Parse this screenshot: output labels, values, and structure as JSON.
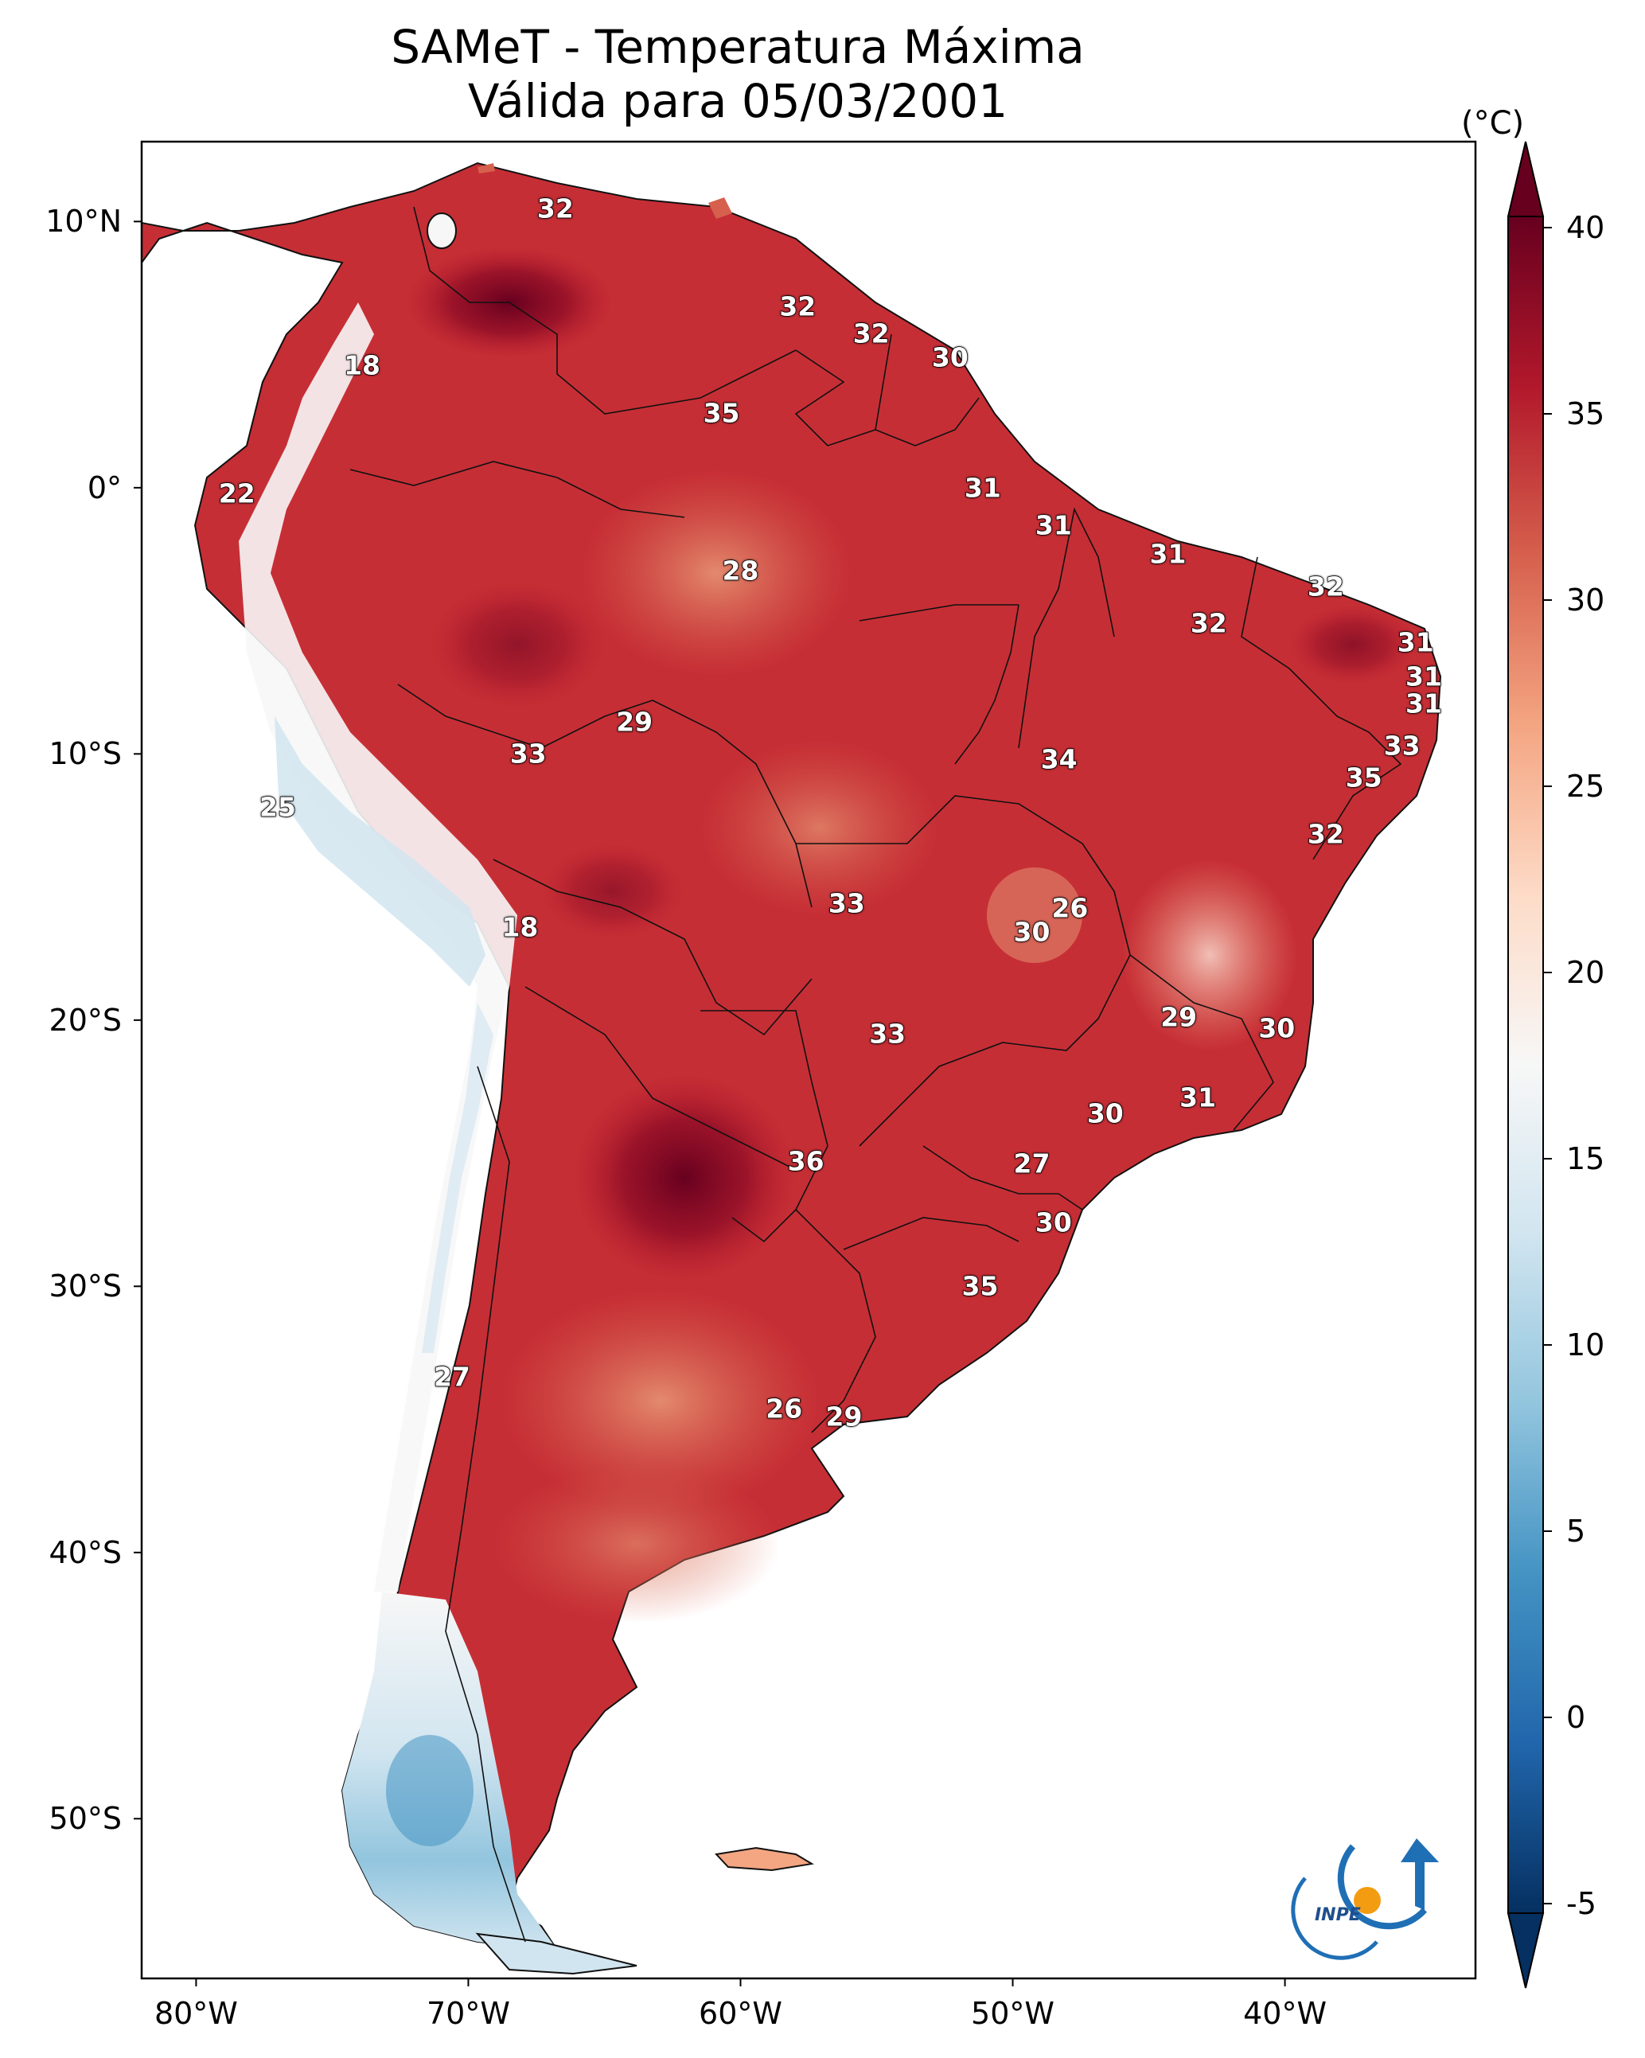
{
  "title": {
    "line1": "SAMeT - Temperatura Máxima",
    "line2": "Válida para 05/03/2001"
  },
  "map": {
    "lon_range": [
      -82,
      -33
    ],
    "lat_range": [
      -56,
      13
    ],
    "lat_ticks": [
      {
        "value": 10,
        "label": "10°N"
      },
      {
        "value": 0,
        "label": "0°"
      },
      {
        "value": -10,
        "label": "10°S"
      },
      {
        "value": -20,
        "label": "20°S"
      },
      {
        "value": -30,
        "label": "30°S"
      },
      {
        "value": -40,
        "label": "40°S"
      },
      {
        "value": -50,
        "label": "50°S"
      }
    ],
    "lon_ticks": [
      {
        "value": -80,
        "label": "80°W"
      },
      {
        "value": -70,
        "label": "70°W"
      },
      {
        "value": -60,
        "label": "60°W"
      },
      {
        "value": -50,
        "label": "50°W"
      },
      {
        "value": -40,
        "label": "40°W"
      }
    ]
  },
  "colorbar": {
    "unit": "(°C)",
    "min": -5,
    "max": 40,
    "ticks": [
      {
        "value": 40,
        "label": "40"
      },
      {
        "value": 35,
        "label": "35"
      },
      {
        "value": 30,
        "label": "30"
      },
      {
        "value": 25,
        "label": "25"
      },
      {
        "value": 20,
        "label": "20"
      },
      {
        "value": 15,
        "label": "15"
      },
      {
        "value": 10,
        "label": "10"
      },
      {
        "value": 5,
        "label": "5"
      },
      {
        "value": 0,
        "label": "0"
      },
      {
        "value": -5,
        "label": "-5"
      }
    ],
    "colors": [
      "#053061",
      "#2166ac",
      "#4393c3",
      "#92c5de",
      "#d1e5f0",
      "#f7f7f7",
      "#fddbc7",
      "#f4a582",
      "#d6604d",
      "#b2182b",
      "#67001f"
    ]
  },
  "logo": {
    "text": "INPE"
  },
  "city_labels": [
    {
      "lon": -66.8,
      "lat": 10.5,
      "value": "32"
    },
    {
      "lon": -57.9,
      "lat": 6.8,
      "value": "32"
    },
    {
      "lon": -55.2,
      "lat": 5.8,
      "value": "32"
    },
    {
      "lon": -52.3,
      "lat": 4.9,
      "value": "30"
    },
    {
      "lon": -73.9,
      "lat": 4.6,
      "value": "18"
    },
    {
      "lon": -60.7,
      "lat": 2.8,
      "value": "35"
    },
    {
      "lon": -51.1,
      "lat": 0.0,
      "value": "31"
    },
    {
      "lon": -78.5,
      "lat": -0.2,
      "value": "22"
    },
    {
      "lon": -48.5,
      "lat": -1.4,
      "value": "31"
    },
    {
      "lon": -44.3,
      "lat": -2.5,
      "value": "31"
    },
    {
      "lon": -60.0,
      "lat": -3.1,
      "value": "28"
    },
    {
      "lon": -38.5,
      "lat": -3.7,
      "value": "32"
    },
    {
      "lon": -42.8,
      "lat": -5.1,
      "value": "32"
    },
    {
      "lon": -35.2,
      "lat": -5.8,
      "value": "31"
    },
    {
      "lon": -34.9,
      "lat": -7.1,
      "value": "31"
    },
    {
      "lon": -34.9,
      "lat": -8.1,
      "value": "31"
    },
    {
      "lon": -63.9,
      "lat": -8.8,
      "value": "29"
    },
    {
      "lon": -35.7,
      "lat": -9.7,
      "value": "33"
    },
    {
      "lon": -67.8,
      "lat": -10.0,
      "value": "33"
    },
    {
      "lon": -48.3,
      "lat": -10.2,
      "value": "34"
    },
    {
      "lon": -37.1,
      "lat": -10.9,
      "value": "35"
    },
    {
      "lon": -77.0,
      "lat": -12.0,
      "value": "25"
    },
    {
      "lon": -38.5,
      "lat": -13.0,
      "value": "32"
    },
    {
      "lon": -56.1,
      "lat": -15.6,
      "value": "33"
    },
    {
      "lon": -47.9,
      "lat": -15.8,
      "value": "26"
    },
    {
      "lon": -68.1,
      "lat": -16.5,
      "value": "18"
    },
    {
      "lon": -49.3,
      "lat": -16.7,
      "value": "30"
    },
    {
      "lon": -43.9,
      "lat": -19.9,
      "value": "29"
    },
    {
      "lon": -40.3,
      "lat": -20.3,
      "value": "30"
    },
    {
      "lon": -54.6,
      "lat": -20.5,
      "value": "33"
    },
    {
      "lon": -43.2,
      "lat": -22.9,
      "value": "31"
    },
    {
      "lon": -46.6,
      "lat": -23.5,
      "value": "30"
    },
    {
      "lon": -57.6,
      "lat": -25.3,
      "value": "36"
    },
    {
      "lon": -49.3,
      "lat": -25.4,
      "value": "27"
    },
    {
      "lon": -48.5,
      "lat": -27.6,
      "value": "30"
    },
    {
      "lon": -51.2,
      "lat": -30.0,
      "value": "35"
    },
    {
      "lon": -70.6,
      "lat": -33.4,
      "value": "27"
    },
    {
      "lon": -58.4,
      "lat": -34.6,
      "value": "26"
    },
    {
      "lon": -56.2,
      "lat": -34.9,
      "value": "29"
    }
  ]
}
